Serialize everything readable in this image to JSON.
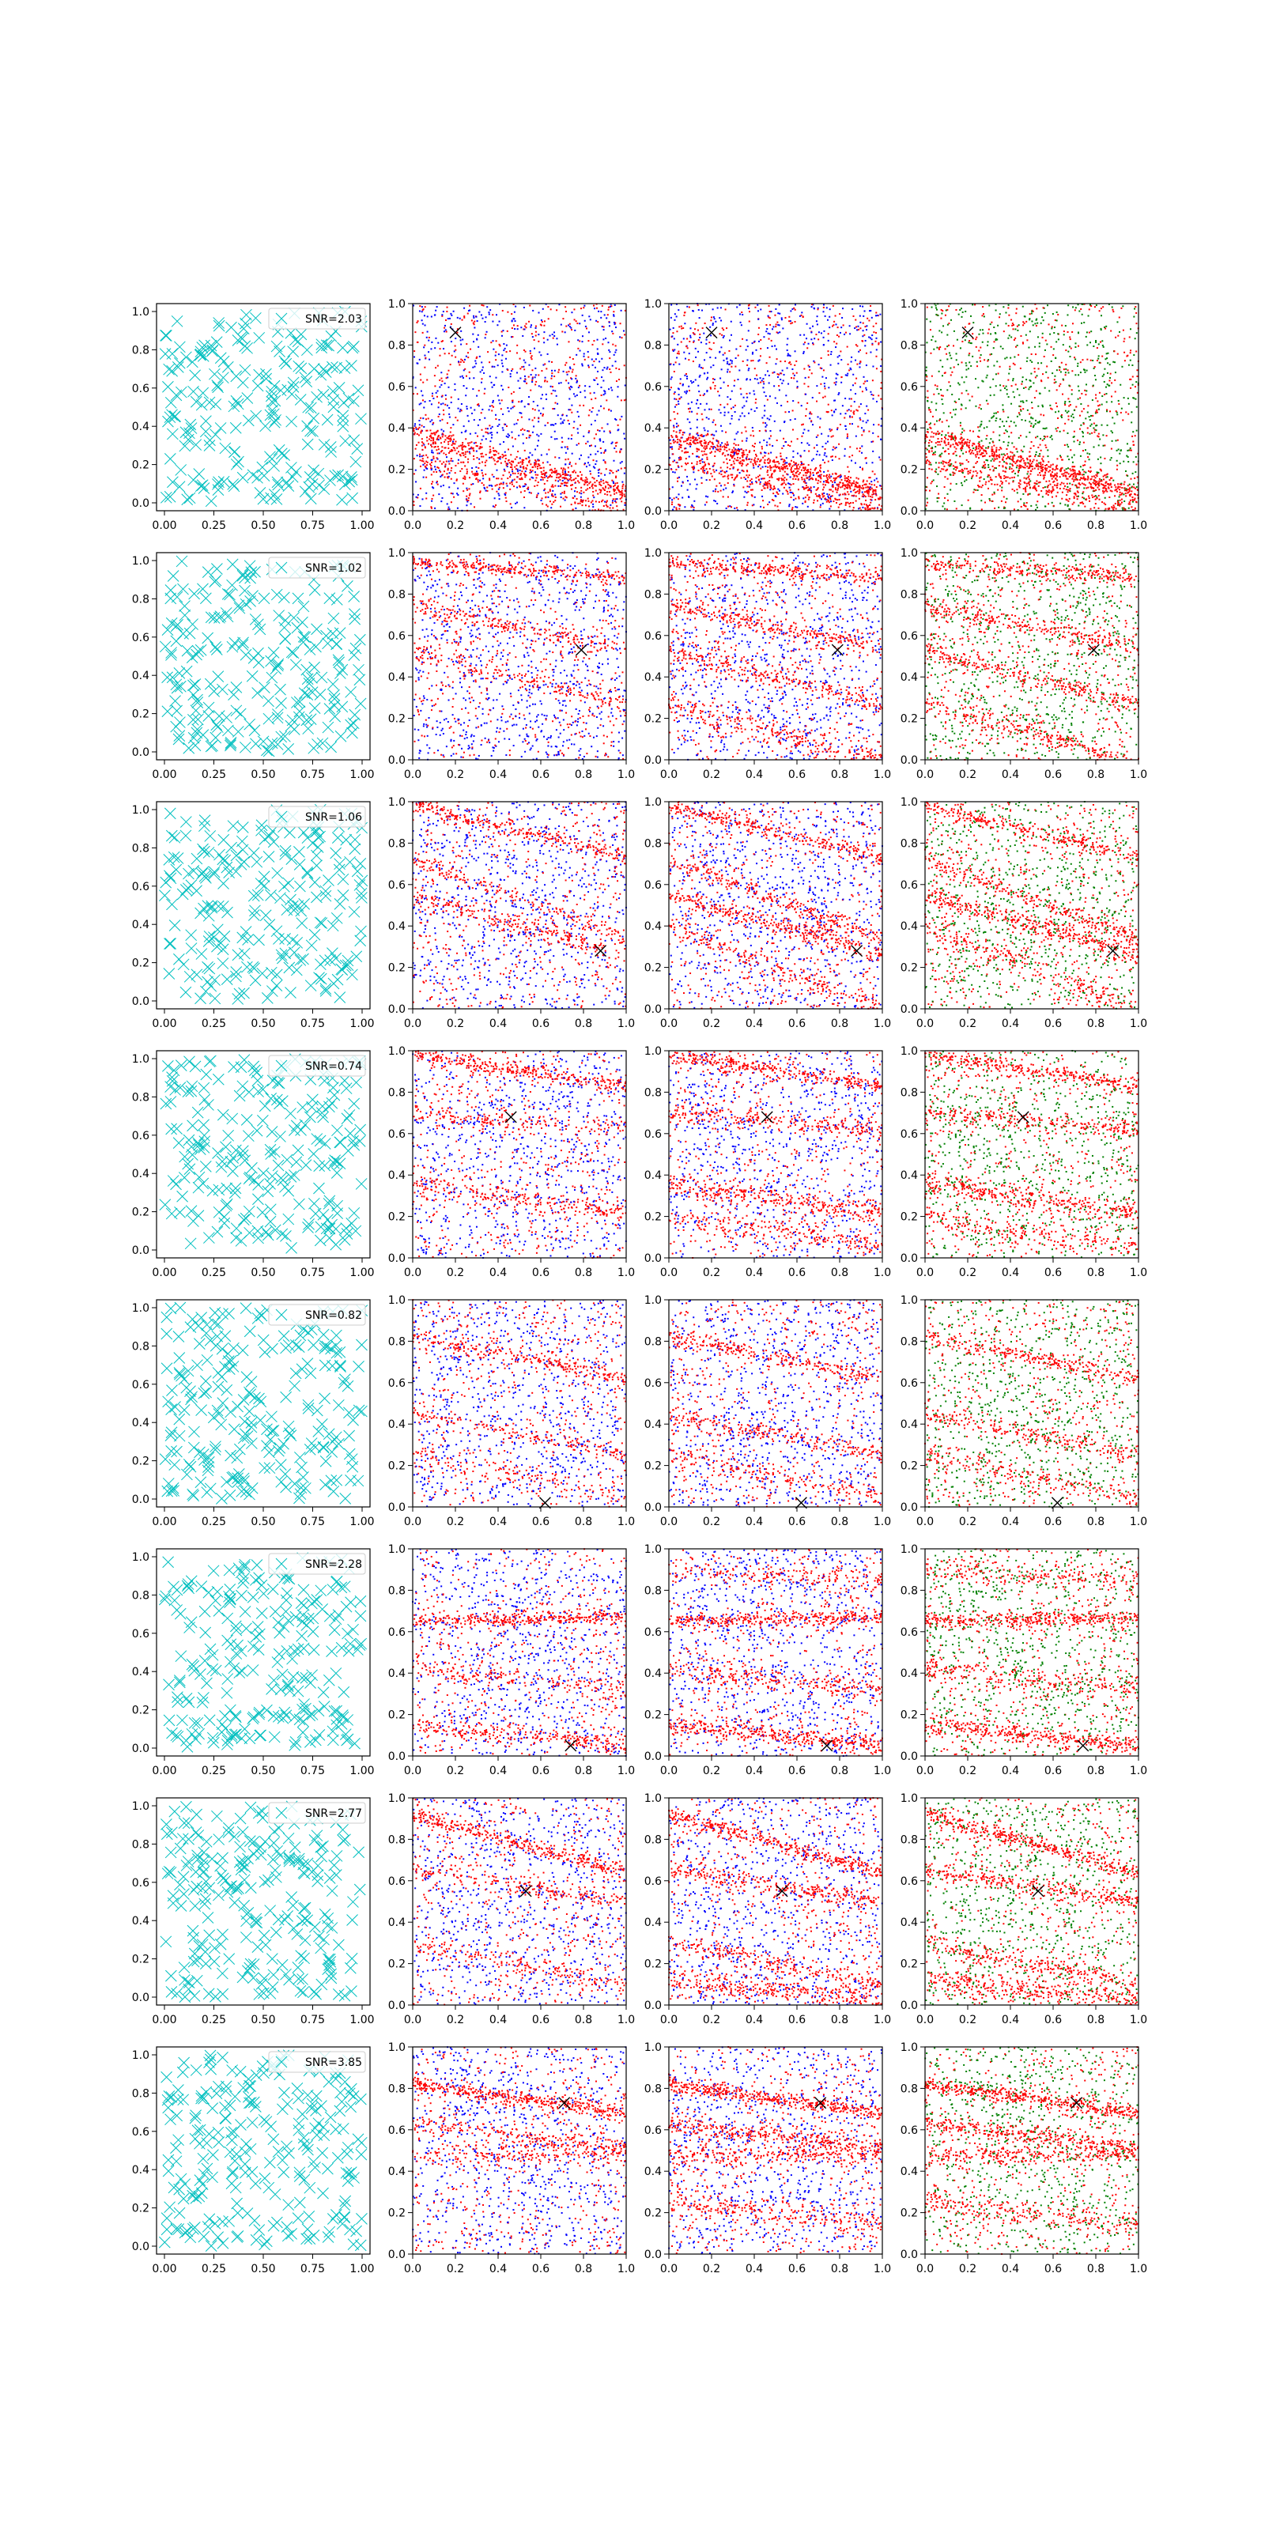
{
  "colors": {
    "cross": "#00bfbf",
    "red_points": "#ff0000",
    "blue_points": "#0000ff",
    "green_points": "#008000",
    "marker": "#000000",
    "legend_border": "#cccccc"
  },
  "ticks": {
    "cross_x": [
      "0.00",
      "0.25",
      "0.50",
      "0.75",
      "1.00"
    ],
    "cross_y": [
      "0.0",
      "0.2",
      "0.4",
      "0.6",
      "0.8",
      "1.0"
    ],
    "points_x": [
      "0.0",
      "0.2",
      "0.4",
      "0.6",
      "0.8",
      "1.0"
    ],
    "points_y": [
      "0.0",
      "0.2",
      "0.4",
      "0.6",
      "0.8",
      "1.0"
    ]
  },
  "chart_data": [
    {
      "row": 1,
      "type": "scatter",
      "legend": "SNR=2.03",
      "xlim": [
        0,
        1
      ],
      "ylim": [
        0,
        1
      ],
      "marker_xy": [
        0.2,
        0.86
      ],
      "streaks": [
        {
          "intercept": 0.39,
          "slope": -0.3,
          "strength": 0.3
        },
        {
          "intercept": 0.35,
          "slope": -0.28,
          "strength": 0.45
        },
        {
          "intercept": 0.25,
          "slope": -0.25,
          "strength": 0.35
        }
      ],
      "blue_blobs": [
        {
          "x": 0.78,
          "y": 0.62
        },
        {
          "x": 0.35,
          "y": 0.5
        }
      ],
      "red_blobs": [
        {
          "x": 0.7,
          "y": 0.62
        }
      ]
    },
    {
      "row": 2,
      "type": "scatter",
      "legend": "SNR=1.02",
      "xlim": [
        0,
        1
      ],
      "ylim": [
        0,
        1
      ],
      "marker_xy": [
        0.79,
        0.53
      ],
      "streaks": [
        {
          "intercept": 0.95,
          "slope": -0.07,
          "strength": 0.35
        },
        {
          "intercept": 0.74,
          "slope": -0.2,
          "strength": 0.35
        },
        {
          "intercept": 0.52,
          "slope": -0.25,
          "strength": 0.35
        },
        {
          "intercept": 0.28,
          "slope": -0.3,
          "strength": 0.35
        }
      ],
      "blue_blobs": [
        {
          "x": 0.6,
          "y": 0.25
        },
        {
          "x": 0.85,
          "y": 0.85
        }
      ],
      "red_blobs": []
    },
    {
      "row": 3,
      "type": "scatter",
      "legend": "SNR=1.06",
      "xlim": [
        0,
        1
      ],
      "ylim": [
        0,
        1
      ],
      "marker_xy": [
        0.88,
        0.28
      ],
      "streaks": [
        {
          "intercept": 0.98,
          "slope": -0.25,
          "strength": 0.35
        },
        {
          "intercept": 0.72,
          "slope": -0.38,
          "strength": 0.35
        },
        {
          "intercept": 0.55,
          "slope": -0.29,
          "strength": 0.45
        },
        {
          "intercept": 0.4,
          "slope": -0.4,
          "strength": 0.3
        }
      ],
      "blue_blobs": [
        {
          "x": 0.35,
          "y": 0.45
        },
        {
          "x": 0.6,
          "y": 0.6
        }
      ],
      "red_blobs": []
    },
    {
      "row": 4,
      "type": "scatter",
      "legend": "SNR=0.74",
      "xlim": [
        0,
        1
      ],
      "ylim": [
        0,
        1
      ],
      "marker_xy": [
        0.46,
        0.68
      ],
      "streaks": [
        {
          "intercept": 0.98,
          "slope": -0.15,
          "strength": 0.4
        },
        {
          "intercept": 0.7,
          "slope": -0.08,
          "strength": 0.3
        },
        {
          "intercept": 0.36,
          "slope": -0.15,
          "strength": 0.4
        },
        {
          "intercept": 0.2,
          "slope": -0.15,
          "strength": 0.25
        }
      ],
      "blue_blobs": [
        {
          "x": 0.3,
          "y": 0.6
        },
        {
          "x": 0.75,
          "y": 0.75
        }
      ],
      "red_blobs": [
        {
          "x": 0.35,
          "y": 0.9
        }
      ]
    },
    {
      "row": 5,
      "type": "scatter",
      "legend": "SNR=0.82",
      "xlim": [
        0,
        1
      ],
      "ylim": [
        0,
        1
      ],
      "marker_xy": [
        0.62,
        0.02
      ],
      "streaks": [
        {
          "intercept": 0.82,
          "slope": -0.2,
          "strength": 0.3
        },
        {
          "intercept": 0.45,
          "slope": -0.2,
          "strength": 0.3
        },
        {
          "intercept": 0.25,
          "slope": -0.2,
          "strength": 0.25
        }
      ],
      "blue_blobs": [
        {
          "x": 0.4,
          "y": 0.4
        },
        {
          "x": 0.8,
          "y": 0.2
        }
      ],
      "red_blobs": []
    },
    {
      "row": 6,
      "type": "scatter",
      "legend": "SNR=2.28",
      "xlim": [
        0,
        1
      ],
      "ylim": [
        0,
        1
      ],
      "marker_xy": [
        0.74,
        0.05
      ],
      "streaks": [
        {
          "intercept": 0.65,
          "slope": 0.02,
          "strength": 0.45
        },
        {
          "intercept": 0.15,
          "slope": -0.1,
          "strength": 0.45
        },
        {
          "intercept": 0.42,
          "slope": -0.1,
          "strength": 0.3
        },
        {
          "intercept": 0.9,
          "slope": -0.05,
          "strength": 0.25
        }
      ],
      "blue_blobs": [
        {
          "x": 0.6,
          "y": 0.4
        },
        {
          "x": 0.3,
          "y": 0.8
        }
      ],
      "red_blobs": []
    },
    {
      "row": 7,
      "type": "scatter",
      "legend": "SNR=2.77",
      "xlim": [
        0,
        1
      ],
      "ylim": [
        0,
        1
      ],
      "marker_xy": [
        0.53,
        0.55
      ],
      "streaks": [
        {
          "intercept": 0.92,
          "slope": -0.28,
          "strength": 0.45
        },
        {
          "intercept": 0.65,
          "slope": -0.15,
          "strength": 0.35
        },
        {
          "intercept": 0.3,
          "slope": -0.2,
          "strength": 0.3
        },
        {
          "intercept": 0.12,
          "slope": -0.1,
          "strength": 0.4
        }
      ],
      "blue_blobs": [
        {
          "x": 0.6,
          "y": 0.8
        },
        {
          "x": 0.2,
          "y": 0.35
        }
      ],
      "red_blobs": []
    },
    {
      "row": 8,
      "type": "scatter",
      "legend": "SNR=3.85",
      "xlim": [
        0,
        1
      ],
      "ylim": [
        0,
        1
      ],
      "marker_xy": [
        0.71,
        0.73
      ],
      "streaks": [
        {
          "intercept": 0.82,
          "slope": -0.14,
          "strength": 0.55
        },
        {
          "intercept": 0.63,
          "slope": -0.12,
          "strength": 0.4
        },
        {
          "intercept": 0.48,
          "slope": 0.0,
          "strength": 0.35
        },
        {
          "intercept": 0.25,
          "slope": -0.1,
          "strength": 0.3
        }
      ],
      "blue_blobs": [
        {
          "x": 0.3,
          "y": 0.8
        },
        {
          "x": 0.6,
          "y": 0.35
        }
      ],
      "red_blobs": []
    }
  ]
}
